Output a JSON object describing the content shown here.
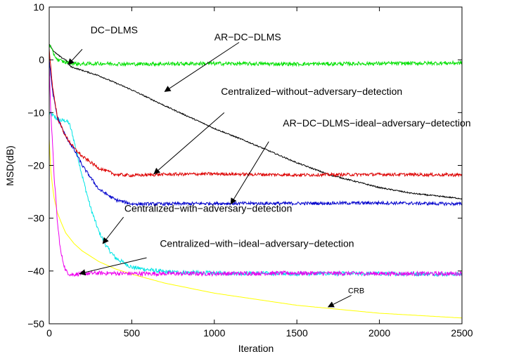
{
  "chart_data": {
    "type": "line",
    "title": "",
    "xlabel": "Iteration",
    "ylabel": "MSD(dB)",
    "xlim": [
      0,
      2500
    ],
    "ylim": [
      -50,
      10
    ],
    "xticks": [
      0,
      500,
      1000,
      1500,
      2000,
      2500
    ],
    "yticks": [
      -50,
      -40,
      -30,
      -20,
      -10,
      0,
      10
    ],
    "grid": false,
    "legend": "none",
    "series": [
      {
        "color": "#00e000",
        "noise": 0.35,
        "x": [
          0,
          20,
          50,
          100,
          150,
          200,
          300,
          500,
          1000,
          1500,
          2000,
          2500
        ],
        "values": [
          3,
          1.5,
          0,
          -0.5,
          -0.7,
          -0.8,
          -0.7,
          -0.8,
          -0.7,
          -0.8,
          -0.7,
          -0.6
        ]
      },
      {
        "color": "#000000",
        "noise": 0.12,
        "x": [
          0,
          30,
          70,
          100,
          130,
          200,
          300,
          500,
          700,
          1000,
          1200,
          1500,
          1700,
          2000,
          2200,
          2500
        ],
        "values": [
          3,
          1.5,
          0.5,
          0,
          -1.3,
          -2,
          -3,
          -5.7,
          -8.7,
          -13,
          -15.5,
          -19.5,
          -21.8,
          -24.2,
          -25.3,
          -26.3
        ]
      },
      {
        "color": "#dd0000",
        "noise": 0.3,
        "x": [
          0,
          20,
          50,
          100,
          150,
          200,
          300,
          400,
          500,
          700,
          1000,
          1500,
          2000,
          2500
        ],
        "values": [
          2,
          -5,
          -11,
          -14.5,
          -16.7,
          -18.3,
          -20.5,
          -21.7,
          -21.9,
          -21.7,
          -21.6,
          -21.8,
          -21.7,
          -21.8
        ]
      },
      {
        "color": "#0000cc",
        "noise": 0.3,
        "x": [
          0,
          20,
          50,
          100,
          150,
          200,
          300,
          400,
          500,
          700,
          1000,
          1500,
          2000,
          2500
        ],
        "values": [
          0,
          -6,
          -11,
          -14.5,
          -17,
          -20,
          -24.5,
          -26.5,
          -27.3,
          -27.3,
          -27.2,
          -27.2,
          -27.1,
          -27.3
        ]
      },
      {
        "color": "#00e5e5",
        "noise": 0.4,
        "x": [
          0,
          20,
          40,
          70,
          100,
          120,
          140,
          170,
          200,
          250,
          300,
          350,
          400,
          500,
          700,
          1000,
          1500,
          2000,
          2500
        ],
        "values": [
          -10,
          -10.5,
          -11,
          -11.5,
          -11.5,
          -12,
          -14,
          -18,
          -22,
          -28,
          -32.5,
          -35.5,
          -37.5,
          -39.3,
          -40.2,
          -40.4,
          -40.5,
          -40.5,
          -40.6
        ]
      },
      {
        "color": "#ee00ee",
        "noise": 0.4,
        "x": [
          0,
          10,
          30,
          50,
          70,
          100,
          130,
          200,
          300,
          500,
          1000,
          1500,
          2000,
          2500
        ],
        "values": [
          -1,
          -10,
          -22,
          -31,
          -36.5,
          -40,
          -40.7,
          -40.5,
          -40.4,
          -40.5,
          -40.5,
          -40.4,
          -40.5,
          -40.5
        ]
      },
      {
        "color": "#ffff00",
        "noise": 0,
        "x": [
          0,
          10,
          25,
          50,
          75,
          100,
          150,
          200,
          300,
          400,
          500,
          700,
          1000,
          1500,
          2000,
          2500
        ],
        "values": [
          -15,
          -21,
          -25.5,
          -29,
          -31,
          -32.8,
          -34.8,
          -36.2,
          -38.2,
          -39.6,
          -40.6,
          -42.3,
          -44.2,
          -46.5,
          -48,
          -48.9
        ]
      }
    ],
    "annotations": [
      {
        "text": "DC−DLMS",
        "text_x": 250,
        "text_y": 5,
        "arrow_from": [
          200,
          2
        ],
        "arrow_to": [
          115,
          -0.9
        ],
        "small": false
      },
      {
        "text": "AR−DC−DLMS",
        "text_x": 1000,
        "text_y": 3.7,
        "arrow_from": [
          1150,
          3.3
        ],
        "arrow_to": [
          700,
          -6
        ],
        "small": false
      },
      {
        "text": "Centralized−without−adversary−detection",
        "text_x": 1040,
        "text_y": -6.6,
        "arrow_from": [
          1060,
          -10
        ],
        "arrow_to": [
          635,
          -21.6
        ],
        "small": false
      },
      {
        "text": "AR−DC−DLMS−ideal−adversary−detection",
        "text_x": 1415,
        "text_y": -12.6,
        "arrow_from": [
          1330,
          -15.5
        ],
        "arrow_to": [
          1100,
          -27.3
        ],
        "small": false
      },
      {
        "text": "Centralized−with−adversary−detection",
        "text_x": 455,
        "text_y": -28.8,
        "arrow_from": [
          450,
          -29.8
        ],
        "arrow_to": [
          325,
          -34.8
        ],
        "small": false
      },
      {
        "text": "Centralized−with−ideal−adversary−detection",
        "text_x": 670,
        "text_y": -35.4,
        "arrow_from": [
          590,
          -37.5
        ],
        "arrow_to": [
          185,
          -40.5
        ],
        "small": false
      },
      {
        "text": "CRB",
        "text_x": 1810,
        "text_y": -44.2,
        "arrow_from": [
          1830,
          -44.6
        ],
        "arrow_to": [
          1690,
          -46.8
        ],
        "small": true
      }
    ]
  }
}
